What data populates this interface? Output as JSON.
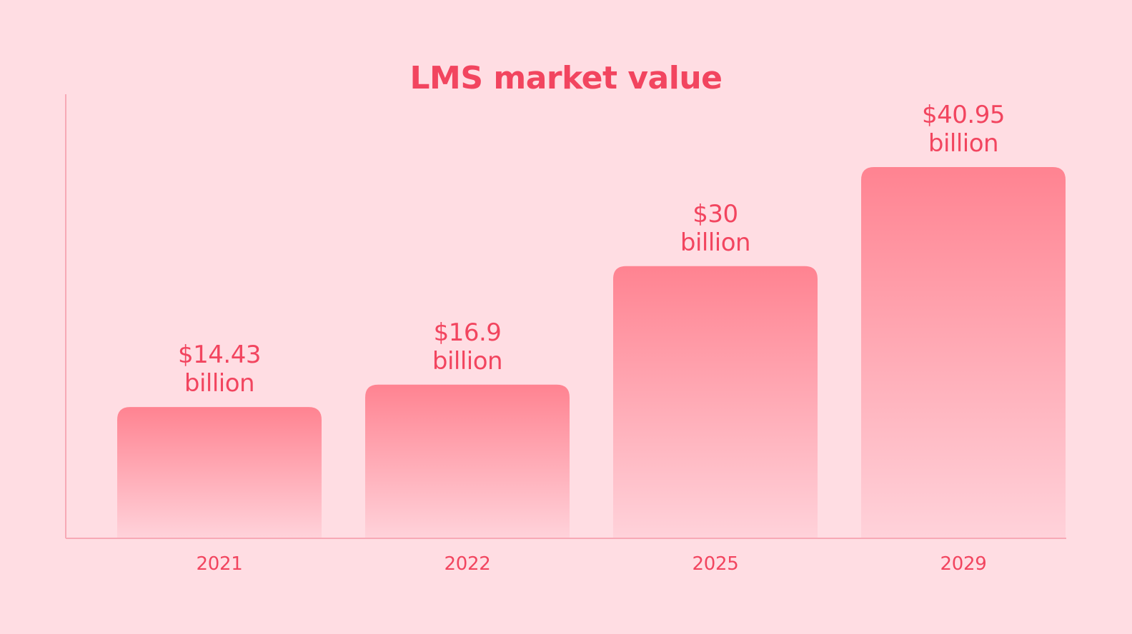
{
  "chart_data": {
    "type": "bar",
    "title": "LMS market value",
    "xlabel": "",
    "ylabel": "",
    "categories": [
      "2021",
      "2022",
      "2025",
      "2029"
    ],
    "values": [
      14.43,
      16.9,
      30,
      40.95
    ],
    "value_labels": [
      [
        "$14.43",
        "billion"
      ],
      [
        "$16.9",
        "billion"
      ],
      [
        "$30",
        "billion"
      ],
      [
        "$40.95",
        "billion"
      ]
    ],
    "ylim": [
      0,
      40.95
    ],
    "grid": false,
    "legend": "none"
  },
  "colors": {
    "background": "#ffdde3",
    "accent": "#f2455f",
    "bar_top": "#ff8391",
    "bar_bottom": "#ffd2da",
    "axis": "#f7a9b6"
  }
}
